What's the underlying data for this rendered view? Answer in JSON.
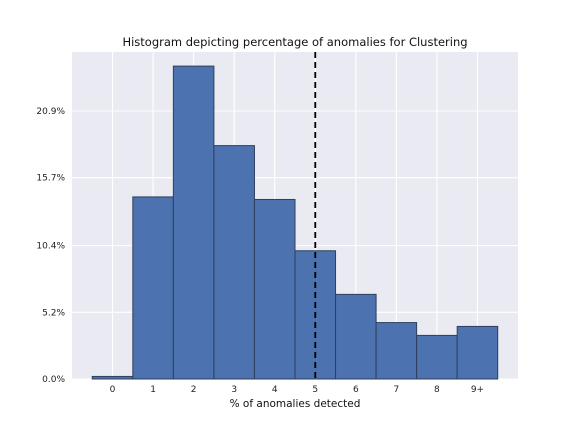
{
  "chart_data": {
    "type": "bar",
    "title": "Histogram depicting percentage of anomalies for Clustering",
    "xlabel": "% of anomalies detected",
    "ylabel": "",
    "categories": [
      "0",
      "1",
      "2",
      "3",
      "4",
      "5",
      "6",
      "7",
      "8",
      "9+"
    ],
    "values": [
      0.2,
      14.2,
      24.4,
      18.2,
      14.0,
      10.0,
      6.6,
      4.4,
      3.4,
      4.1
    ],
    "y_ticks": [
      0.0,
      5.2,
      10.4,
      15.7,
      20.9
    ],
    "y_tick_labels": [
      "0.0%",
      "5.2%",
      "10.4%",
      "15.7%",
      "20.9%"
    ],
    "ylim": [
      0,
      25.5
    ],
    "reference_line": {
      "category_index": 5,
      "style": "dashed"
    },
    "grid": true,
    "colors": {
      "bar": "#4c72b0",
      "bar_edge": "#2f3f5c",
      "plot_bg": "#eaeaf2",
      "grid": "#ffffff",
      "ref_line": "#000000"
    }
  }
}
